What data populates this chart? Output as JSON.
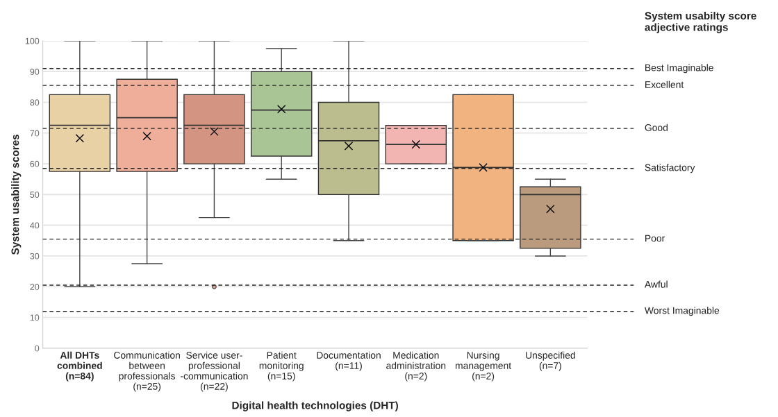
{
  "chart_data": {
    "type": "box",
    "xlabel": "Digital health technologies (DHT)",
    "ylabel": "System usability scores",
    "categories": [
      "All DHTs\ncombined\n(n=84)",
      "Communication\nbetween\nprofessionals\n(n=25)",
      "Service user-\nprofessional\n-communication\n(n=22)",
      "Patient\nmonitoring\n(n=15)",
      "Documentation\n(n=11)",
      "Medication\nadministration\n(n=2)",
      "Nursing\nmanagement\n(n=2)",
      "Unspecified\n(n=7)"
    ],
    "colors": [
      "#e9d1a6",
      "#efae9a",
      "#d39581",
      "#a9c495",
      "#bbbd8e",
      "#f2b5b1",
      "#f1b37f",
      "#bb9b7e"
    ],
    "boxes": [
      {
        "low": 20,
        "q1": 57.5,
        "median": 72.5,
        "q3": 82.5,
        "high": 100,
        "mean": 68.3
      },
      {
        "low": 27.5,
        "q1": 57.5,
        "median": 75,
        "q3": 87.5,
        "high": 100,
        "mean": 69
      },
      {
        "low": 42.5,
        "q1": 60,
        "median": 72.5,
        "q3": 82.5,
        "high": 100,
        "mean": 70.5,
        "outliers": [
          20
        ]
      },
      {
        "low": 55,
        "q1": 62.5,
        "median": 77.5,
        "q3": 90,
        "high": 97.5,
        "mean": 77.8
      },
      {
        "low": 35,
        "q1": 50,
        "median": 67.5,
        "q3": 80,
        "high": 100,
        "mean": 65.8
      },
      {
        "low": 60,
        "q1": 60,
        "median": 66.3,
        "q3": 72.5,
        "high": 72.5,
        "mean": 66.3
      },
      {
        "low": 35,
        "q1": 35,
        "median": 58.8,
        "q3": 82.5,
        "high": 82.5,
        "mean": 58.8
      },
      {
        "low": 30,
        "q1": 32.5,
        "median": 50,
        "q3": 52.5,
        "high": 55,
        "mean": 45.3
      }
    ],
    "ylim": [
      0,
      100
    ],
    "yticks": [
      0,
      10,
      20,
      30,
      40,
      50,
      60,
      70,
      80,
      90,
      100
    ],
    "grid": "y",
    "marker": "cross",
    "ref_lines": [
      {
        "axis": "y",
        "value": 91,
        "label": "Best Imaginable",
        "line_style": "dashed"
      },
      {
        "axis": "y",
        "value": 85.5,
        "label": "Excellent",
        "line_style": "dashed"
      },
      {
        "axis": "y",
        "value": 71.5,
        "label": "Good",
        "line_style": "dashed"
      },
      {
        "axis": "y",
        "value": 58.5,
        "label": "Satisfactory",
        "line_style": "dashed"
      },
      {
        "axis": "y",
        "value": 35.5,
        "label": "Poor",
        "line_style": "dashed"
      },
      {
        "axis": "y",
        "value": 20.5,
        "label": "Awful",
        "line_style": "dashed"
      },
      {
        "axis": "y",
        "value": 12,
        "label": "Worst Imaginable",
        "line_style": "dashed"
      }
    ],
    "annotations": [
      "System usabilty score\nadjective ratings"
    ]
  }
}
